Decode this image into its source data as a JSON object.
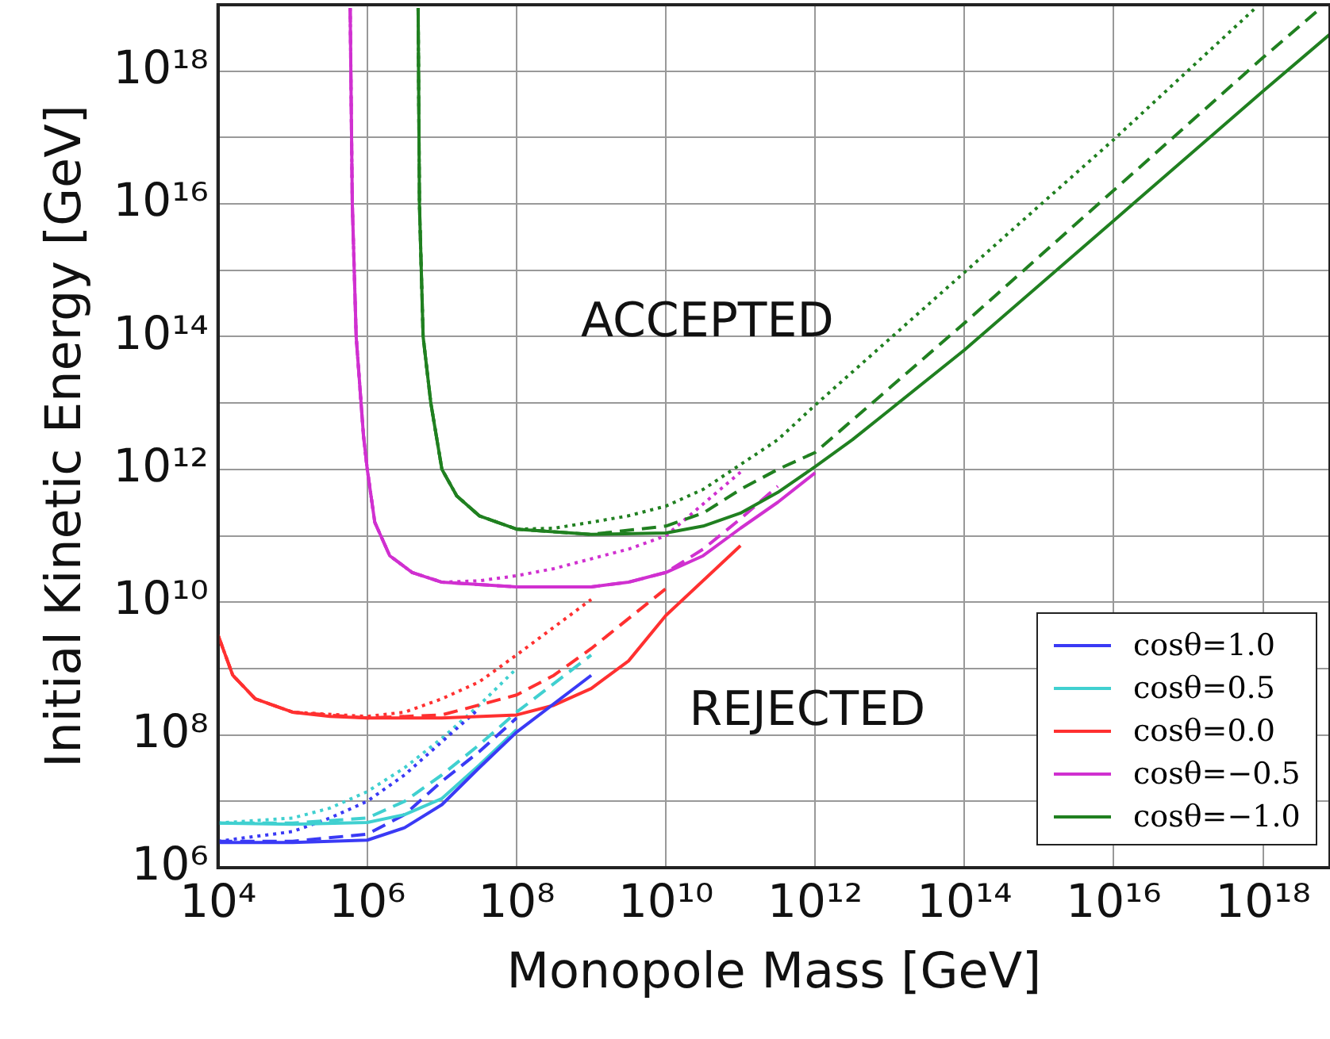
{
  "chart_data": {
    "type": "line",
    "xlabel": "Monopole Mass [GeV]",
    "ylabel": "Initial Kinetic Energy [GeV]",
    "log": "xy",
    "grid": true,
    "legend": "bottom right",
    "marker": "none",
    "annotations": [
      "ACCEPTED",
      "REJECTED"
    ],
    "xlim": [
      10000.0,
      7.9e+18
    ],
    "ylim": [
      1000000.0,
      1e+19
    ],
    "xticks": [
      {
        "value": 10000.0,
        "label": "10⁴"
      },
      {
        "value": 1000000.0,
        "label": "10⁶"
      },
      {
        "value": 100000000.0,
        "label": "10⁸"
      },
      {
        "value": 10000000000.0,
        "label": "10¹⁰"
      },
      {
        "value": 1000000000000.0,
        "label": "10¹²"
      },
      {
        "value": 100000000000000.0,
        "label": "10¹⁴"
      },
      {
        "value": 1e+16,
        "label": "10¹⁶"
      },
      {
        "value": 1e+18,
        "label": "10¹⁸"
      }
    ],
    "yticks": [
      {
        "value": 1000000.0,
        "label": "10⁶"
      },
      {
        "value": 10000000.0,
        "label": null
      },
      {
        "value": 100000000.0,
        "label": "10⁸"
      },
      {
        "value": 1000000000.0,
        "label": null
      },
      {
        "value": 10000000000.0,
        "label": "10¹⁰"
      },
      {
        "value": 100000000000.0,
        "label": null
      },
      {
        "value": 1000000000000.0,
        "label": "10¹²"
      },
      {
        "value": 10000000000000.0,
        "label": null
      },
      {
        "value": 100000000000000.0,
        "label": "10¹⁴"
      },
      {
        "value": 1000000000000000.0,
        "label": null
      },
      {
        "value": 1e+16,
        "label": "10¹⁶"
      },
      {
        "value": 1e+17,
        "label": null
      },
      {
        "value": 1e+18,
        "label": "10¹⁸"
      }
    ],
    "series": [
      {
        "name": "cosθ=1.0",
        "color": "#3a3af5",
        "line_style": "solid",
        "x": [
          10000.0,
          100000.0,
          1000000.0,
          3160000.0,
          10000000.0,
          31600000.0,
          100000000.0,
          1000000000.0
        ],
        "values": [
          2400000.0,
          2400000.0,
          2600000.0,
          4000000.0,
          8900000.0,
          32000000.0,
          110000000.0,
          790000000.0
        ]
      },
      {
        "name": "cosθ=0.5",
        "color": "#40d0d0",
        "line_style": "solid",
        "x": [
          10000.0,
          100000.0,
          1000000.0,
          3160000.0,
          10000000.0,
          31600000.0,
          100000000.0
        ],
        "values": [
          4700000.0,
          4500000.0,
          4800000.0,
          6300000.0,
          11000000.0,
          35000000.0,
          120000000.0
        ]
      },
      {
        "name": "cosθ=0.0",
        "color": "#ff3030",
        "line_style": "solid",
        "x": [
          10000.0,
          15800.0,
          31600.0,
          100000.0,
          316000.0,
          1000000.0,
          10000000.0,
          100000000.0,
          316000000.0,
          1000000000.0,
          3160000000.0,
          10000000000.0,
          100000000000.0
        ],
        "values": [
          3200000000.0,
          790000000.0,
          350000000.0,
          220000000.0,
          190000000.0,
          180000000.0,
          180000000.0,
          200000000.0,
          280000000.0,
          500000000.0,
          1300000000.0,
          6300000000.0,
          71000000000.0
        ]
      },
      {
        "name": "cosθ=−0.5",
        "color": "#d030d0",
        "line_style": "solid",
        "x": [
          590000.0,
          630000.0,
          710000.0,
          890000.0,
          1000000.0,
          1260000.0,
          2000000.0,
          4000000.0,
          10000000.0,
          100000000.0,
          1000000000.0,
          3160000000.0,
          10000000000.0,
          31600000000.0,
          100000000000.0,
          316000000000.0,
          1000000000000.0
        ],
        "values": [
          8.9e+18,
          1e+16,
          100000000000000.0,
          3200000000000.0,
          1000000000000.0,
          160000000000.0,
          50000000000.0,
          28000000000.0,
          20000000000.0,
          17000000000.0,
          17000000000.0,
          20000000000.0,
          28000000000.0,
          50000000000.0,
          130000000000.0,
          320000000000.0,
          890000000000.0
        ]
      },
      {
        "name": "cosθ=−1.0",
        "color": "#208020",
        "line_style": "solid",
        "x": [
          4800000.0,
          5000000.0,
          5600000.0,
          7100000.0,
          10000000.0,
          15800000.0,
          31600000.0,
          100000000.0,
          1000000000.0,
          10000000000.0,
          31600000000.0,
          100000000000.0,
          316000000000.0,
          1000000000000.0,
          3160000000000.0,
          10000000000000.0,
          100000000000000.0,
          1e+16,
          1e+18,
          7.9e+18
        ],
        "values": [
          8.9e+18,
          1e+16,
          100000000000000.0,
          10000000000000.0,
          1000000000000.0,
          400000000000.0,
          200000000000.0,
          126000000000.0,
          105000000000.0,
          110000000000.0,
          140000000000.0,
          220000000000.0,
          450000000000.0,
          1100000000000.0,
          2800000000000.0,
          7900000000000.0,
          63000000000000.0,
          5600000000000000.0,
          5e+17,
          3.6e+18
        ]
      },
      {
        "color": "#3a3af5",
        "line_style": "dashed",
        "x": [
          10000.0,
          100000.0,
          1000000.0,
          3160000.0,
          10000000.0,
          31600000.0,
          100000000.0
        ],
        "values": [
          2500000.0,
          2500000.0,
          3200000.0,
          6300000.0,
          20000000.0,
          56000000.0,
          180000000.0
        ]
      },
      {
        "color": "#40d0d0",
        "line_style": "dashed",
        "x": [
          10000.0,
          100000.0,
          1000000.0,
          3160000.0,
          10000000.0,
          31600000.0,
          100000000.0,
          1000000000.0
        ],
        "values": [
          4700000.0,
          4700000.0,
          5600000.0,
          10000000.0,
          25000000.0,
          71000000.0,
          220000000.0,
          1600000000.0
        ]
      },
      {
        "color": "#ff3030",
        "line_style": "dashed",
        "x": [
          10000.0,
          15800.0,
          31600.0,
          100000.0,
          1000000.0,
          10000000.0,
          100000000.0,
          316000000.0,
          1000000000.0,
          10000000000.0
        ],
        "values": [
          3200000000.0,
          790000000.0,
          350000000.0,
          220000000.0,
          180000000.0,
          200000000.0,
          400000000.0,
          790000000.0,
          2000000000.0,
          16000000000.0
        ]
      },
      {
        "color": "#d030d0",
        "line_style": "dashed",
        "x": [
          590000.0,
          630000.0,
          710000.0,
          890000.0,
          1000000.0,
          1260000.0,
          2000000.0,
          4000000.0,
          10000000.0,
          100000000.0,
          1000000000.0,
          3160000000.0,
          10000000000.0,
          31600000000.0,
          100000000000.0,
          316000000000.0
        ],
        "values": [
          8.9e+18,
          1e+16,
          100000000000000.0,
          3200000000000.0,
          1000000000000.0,
          160000000000.0,
          50000000000.0,
          28000000000.0,
          20000000000.0,
          17000000000.0,
          17000000000.0,
          20000000000.0,
          28000000000.0,
          63000000000.0,
          180000000000.0,
          560000000000.0
        ]
      },
      {
        "color": "#208020",
        "line_style": "dashed",
        "x": [
          4800000.0,
          5000000.0,
          5600000.0,
          7100000.0,
          10000000.0,
          15800000.0,
          31600000.0,
          100000000.0,
          1000000000.0,
          10000000000.0,
          31600000000.0,
          100000000000.0,
          316000000000.0,
          1000000000000.0,
          100000000000000.0,
          1e+16,
          1e+18,
          5.9e+18
        ],
        "values": [
          8.9e+18,
          1e+16,
          100000000000000.0,
          10000000000000.0,
          1000000000000.0,
          400000000000.0,
          200000000000.0,
          126000000000.0,
          105000000000.0,
          140000000000.0,
          220000000000.0,
          500000000000.0,
          1000000000000.0,
          1800000000000.0,
          160000000000000.0,
          1.6e+16,
          1.6e+18,
          8.9e+18
        ]
      },
      {
        "color": "#3a3af5",
        "line_style": "dotted",
        "x": [
          10000.0,
          100000.0,
          316000.0,
          1000000.0,
          3160000.0,
          10000000.0,
          31600000.0
        ],
        "values": [
          2500000.0,
          3500000.0,
          5600000.0,
          10000000.0,
          25000000.0,
          79000000.0,
          250000000.0
        ]
      },
      {
        "color": "#40d0d0",
        "line_style": "dotted",
        "x": [
          10000.0,
          100000.0,
          316000.0,
          1000000.0,
          3160000.0,
          10000000.0,
          31600000.0,
          100000000.0
        ],
        "values": [
          4700000.0,
          5600000.0,
          7900000.0,
          14000000.0,
          32000000.0,
          89000000.0,
          280000000.0,
          1000000000.0
        ]
      },
      {
        "color": "#ff3030",
        "line_style": "dotted",
        "x": [
          10000.0,
          15800.0,
          31600.0,
          100000.0,
          1000000.0,
          3160000.0,
          10000000.0,
          31600000.0,
          100000000.0,
          1000000000.0
        ],
        "values": [
          3200000000.0,
          790000000.0,
          350000000.0,
          220000000.0,
          190000000.0,
          220000000.0,
          350000000.0,
          630000000.0,
          1600000000.0,
          11000000000.0
        ]
      },
      {
        "color": "#d030d0",
        "line_style": "dotted",
        "x": [
          590000.0,
          630000.0,
          710000.0,
          890000.0,
          1000000.0,
          1260000.0,
          2000000.0,
          4000000.0,
          10000000.0,
          31600000.0,
          100000000.0,
          316000000.0,
          1000000000.0,
          3160000000.0,
          10000000000.0,
          100000000000.0
        ],
        "values": [
          8.9e+18,
          1e+16,
          100000000000000.0,
          3200000000000.0,
          1000000000000.0,
          160000000000.0,
          50000000000.0,
          28000000000.0,
          20000000000.0,
          21000000000.0,
          25000000000.0,
          32000000000.0,
          45000000000.0,
          63000000000.0,
          100000000000.0,
          910000000000.0
        ]
      },
      {
        "color": "#208020",
        "line_style": "dotted",
        "x": [
          4800000.0,
          5000000.0,
          5600000.0,
          7100000.0,
          10000000.0,
          15800000.0,
          31600000.0,
          100000000.0,
          316000000.0,
          1000000000.0,
          3160000000.0,
          10000000000.0,
          31600000000.0,
          316000000000.0,
          1000000000000.0,
          100000000000000.0,
          1e+16,
          7.9e+17
        ],
        "values": [
          8.9e+18,
          1e+16,
          100000000000000.0,
          10000000000000.0,
          1000000000000.0,
          400000000000.0,
          200000000000.0,
          126000000000.0,
          130000000000.0,
          160000000000.0,
          200000000000.0,
          280000000000.0,
          500000000000.0,
          2800000000000.0,
          9300000000000.0,
          930000000000000.0,
          9.3e+16,
          8.9e+18
        ]
      }
    ]
  }
}
